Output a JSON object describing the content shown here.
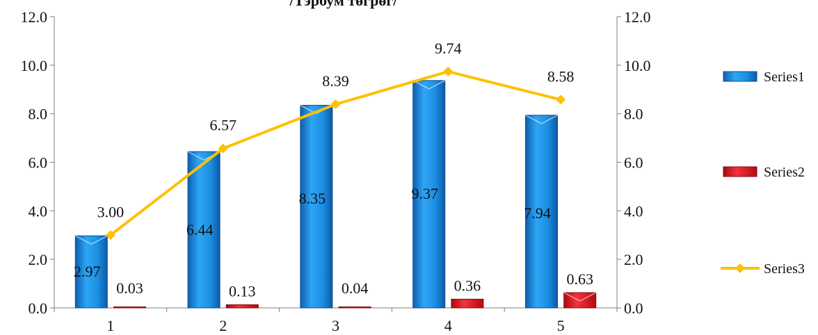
{
  "chart_data": {
    "type": "bar",
    "title": "/Тэрбум төгрөг/",
    "categories": [
      "1",
      "2",
      "3",
      "4",
      "5"
    ],
    "ylim": [
      0,
      12
    ],
    "y_ticks": [
      "0.0",
      "2.0",
      "4.0",
      "6.0",
      "8.0",
      "10.0",
      "12.0"
    ],
    "y2lim": [
      0,
      12
    ],
    "y2_ticks": [
      "0.0",
      "2.0",
      "4.0",
      "6.0",
      "8.0",
      "10.0",
      "12.0"
    ],
    "grid": false,
    "legend_position": "right",
    "series": [
      {
        "name": "Series1",
        "type": "bar",
        "axis": "primary",
        "color": "#1E90E0",
        "values": [
          2.97,
          6.44,
          8.35,
          9.37,
          7.94
        ],
        "labels": [
          "2.97",
          "6.44",
          "8.35",
          "9.37",
          "7.94"
        ]
      },
      {
        "name": "Series2",
        "type": "bar",
        "axis": "primary",
        "color": "#E8141B",
        "values": [
          0.03,
          0.13,
          0.04,
          0.36,
          0.63
        ],
        "labels": [
          "0.03",
          "0.13",
          "0.04",
          "0.36",
          "0.63"
        ]
      },
      {
        "name": "Series3",
        "type": "line",
        "axis": "secondary",
        "color": "#FFC000",
        "values": [
          3.0,
          6.57,
          8.39,
          9.74,
          8.58
        ],
        "labels": [
          "3.00",
          "6.57",
          "8.39",
          "9.74",
          "8.58"
        ]
      }
    ]
  }
}
